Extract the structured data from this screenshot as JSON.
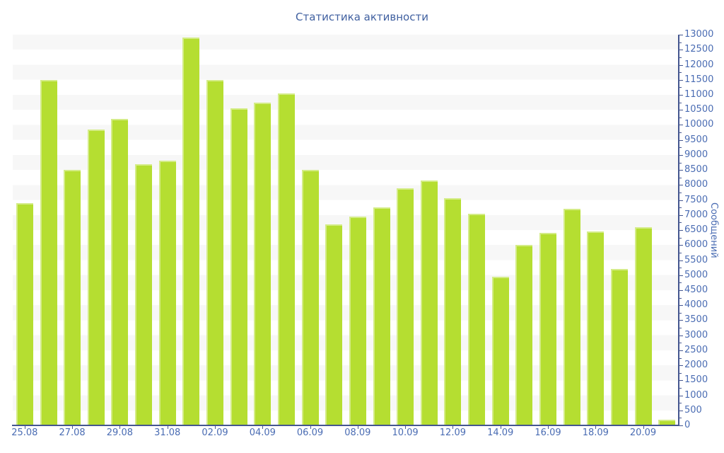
{
  "colors": {
    "bar": "#b5de31",
    "stripe": "#f7f7f7",
    "axis": "#44568f",
    "tick_text": "#4a6cb3",
    "title_text": "#4060a0"
  },
  "chart_data": {
    "type": "bar",
    "title": "Статистика активности",
    "xlabel": "",
    "ylabel": "Сообщений",
    "ylim": [
      0,
      13000
    ],
    "y_tick_step": 500,
    "y_minor_tick_step": 250,
    "grid": "striped-horizontal-bands-every-500",
    "legend": "none",
    "value_axis_position": "right",
    "x_tick_every": 2,
    "x_tick_labels": [
      "25.08",
      "27.08",
      "29.08",
      "31.08",
      "02.09",
      "04.09",
      "06.09",
      "08.09",
      "10.09",
      "12.09",
      "14.09",
      "16.09",
      "18.09",
      "20.09"
    ],
    "categories": [
      "25.08",
      "26.08",
      "27.08",
      "28.08",
      "29.08",
      "30.08",
      "31.08",
      "01.09",
      "02.09",
      "03.09",
      "04.09",
      "05.09",
      "06.09",
      "07.09",
      "08.09",
      "09.09",
      "10.09",
      "11.09",
      "12.09",
      "13.09",
      "14.09",
      "15.09",
      "16.09",
      "17.09",
      "18.09",
      "19.09",
      "20.09",
      "21.09"
    ],
    "values": [
      7400,
      11500,
      8500,
      9850,
      10200,
      8700,
      8800,
      12900,
      11500,
      10550,
      10750,
      11050,
      8500,
      6700,
      6950,
      7250,
      7900,
      8150,
      7550,
      7050,
      4950,
      6000,
      6400,
      7200,
      6450,
      5200,
      6600,
      200
    ]
  }
}
